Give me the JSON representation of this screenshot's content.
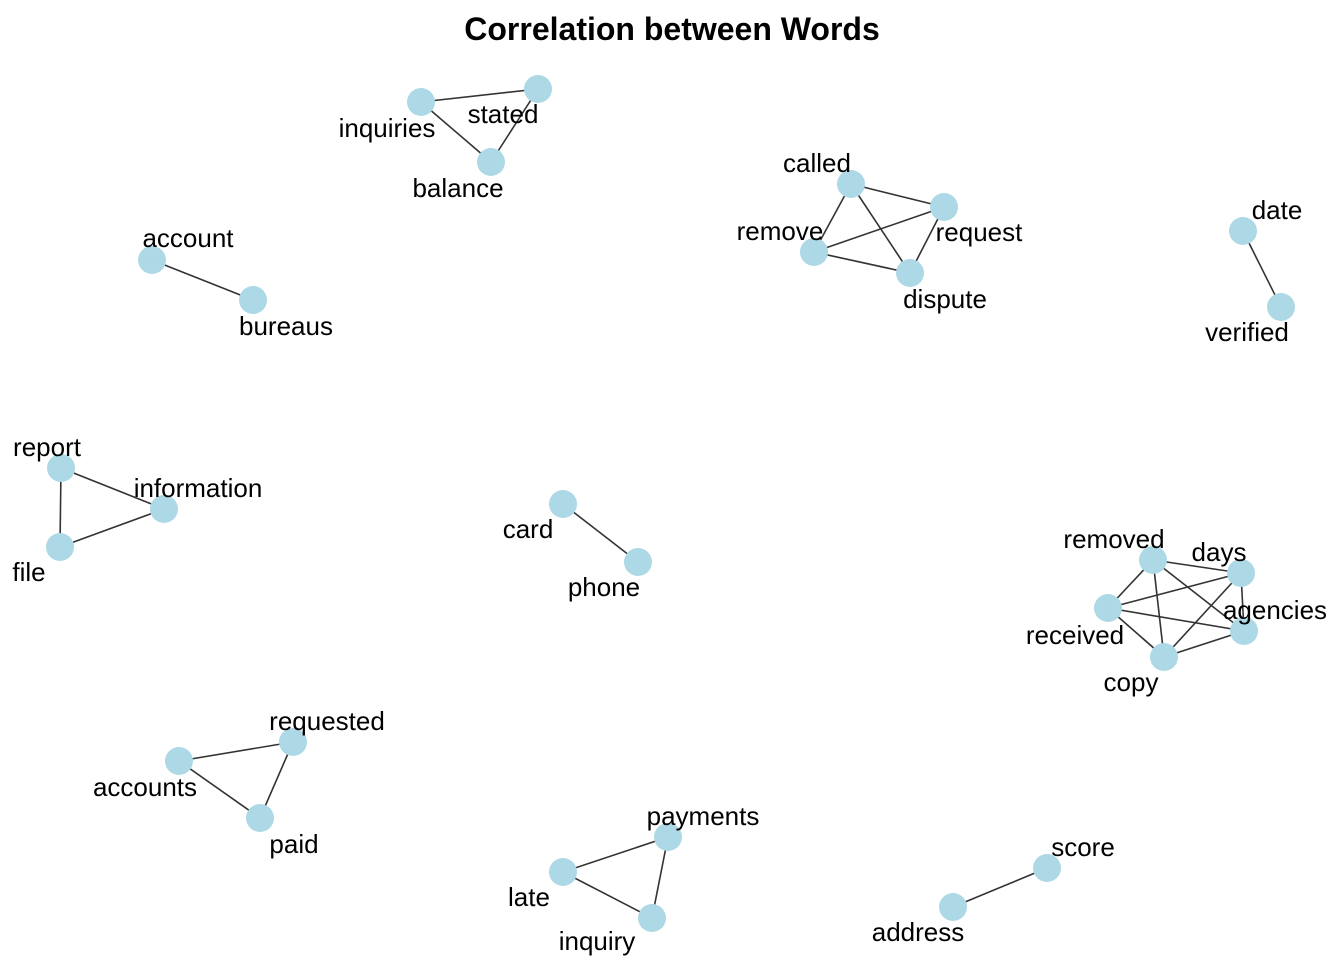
{
  "title": "Correlation between Words",
  "colors": {
    "node": "#add8e6",
    "edge": "#333333",
    "text": "#000000"
  },
  "graph": {
    "nodes": [
      {
        "id": "inquiries"
      },
      {
        "id": "stated"
      },
      {
        "id": "balance"
      },
      {
        "id": "called"
      },
      {
        "id": "request"
      },
      {
        "id": "remove"
      },
      {
        "id": "dispute"
      },
      {
        "id": "date"
      },
      {
        "id": "verified"
      },
      {
        "id": "account"
      },
      {
        "id": "bureaus"
      },
      {
        "id": "report"
      },
      {
        "id": "information"
      },
      {
        "id": "file"
      },
      {
        "id": "card"
      },
      {
        "id": "phone"
      },
      {
        "id": "removed"
      },
      {
        "id": "days"
      },
      {
        "id": "received"
      },
      {
        "id": "agencies"
      },
      {
        "id": "copy"
      },
      {
        "id": "requested"
      },
      {
        "id": "accounts"
      },
      {
        "id": "paid"
      },
      {
        "id": "payments"
      },
      {
        "id": "late"
      },
      {
        "id": "inquiry"
      },
      {
        "id": "score"
      },
      {
        "id": "address"
      }
    ],
    "edges": [
      [
        "inquiries",
        "stated"
      ],
      [
        "inquiries",
        "balance"
      ],
      [
        "balance",
        "stated"
      ],
      [
        "called",
        "request"
      ],
      [
        "called",
        "remove"
      ],
      [
        "called",
        "dispute"
      ],
      [
        "remove",
        "request"
      ],
      [
        "remove",
        "dispute"
      ],
      [
        "request",
        "dispute"
      ],
      [
        "date",
        "verified"
      ],
      [
        "account",
        "bureaus"
      ],
      [
        "report",
        "information"
      ],
      [
        "report",
        "file"
      ],
      [
        "file",
        "information"
      ],
      [
        "card",
        "phone"
      ],
      [
        "removed",
        "days"
      ],
      [
        "removed",
        "received"
      ],
      [
        "removed",
        "agencies"
      ],
      [
        "removed",
        "copy"
      ],
      [
        "days",
        "received"
      ],
      [
        "days",
        "agencies"
      ],
      [
        "days",
        "copy"
      ],
      [
        "received",
        "agencies"
      ],
      [
        "received",
        "copy"
      ],
      [
        "agencies",
        "copy"
      ],
      [
        "accounts",
        "requested"
      ],
      [
        "accounts",
        "paid"
      ],
      [
        "requested",
        "paid"
      ],
      [
        "late",
        "payments"
      ],
      [
        "late",
        "inquiry"
      ],
      [
        "payments",
        "inquiry"
      ],
      [
        "address",
        "score"
      ]
    ]
  }
}
